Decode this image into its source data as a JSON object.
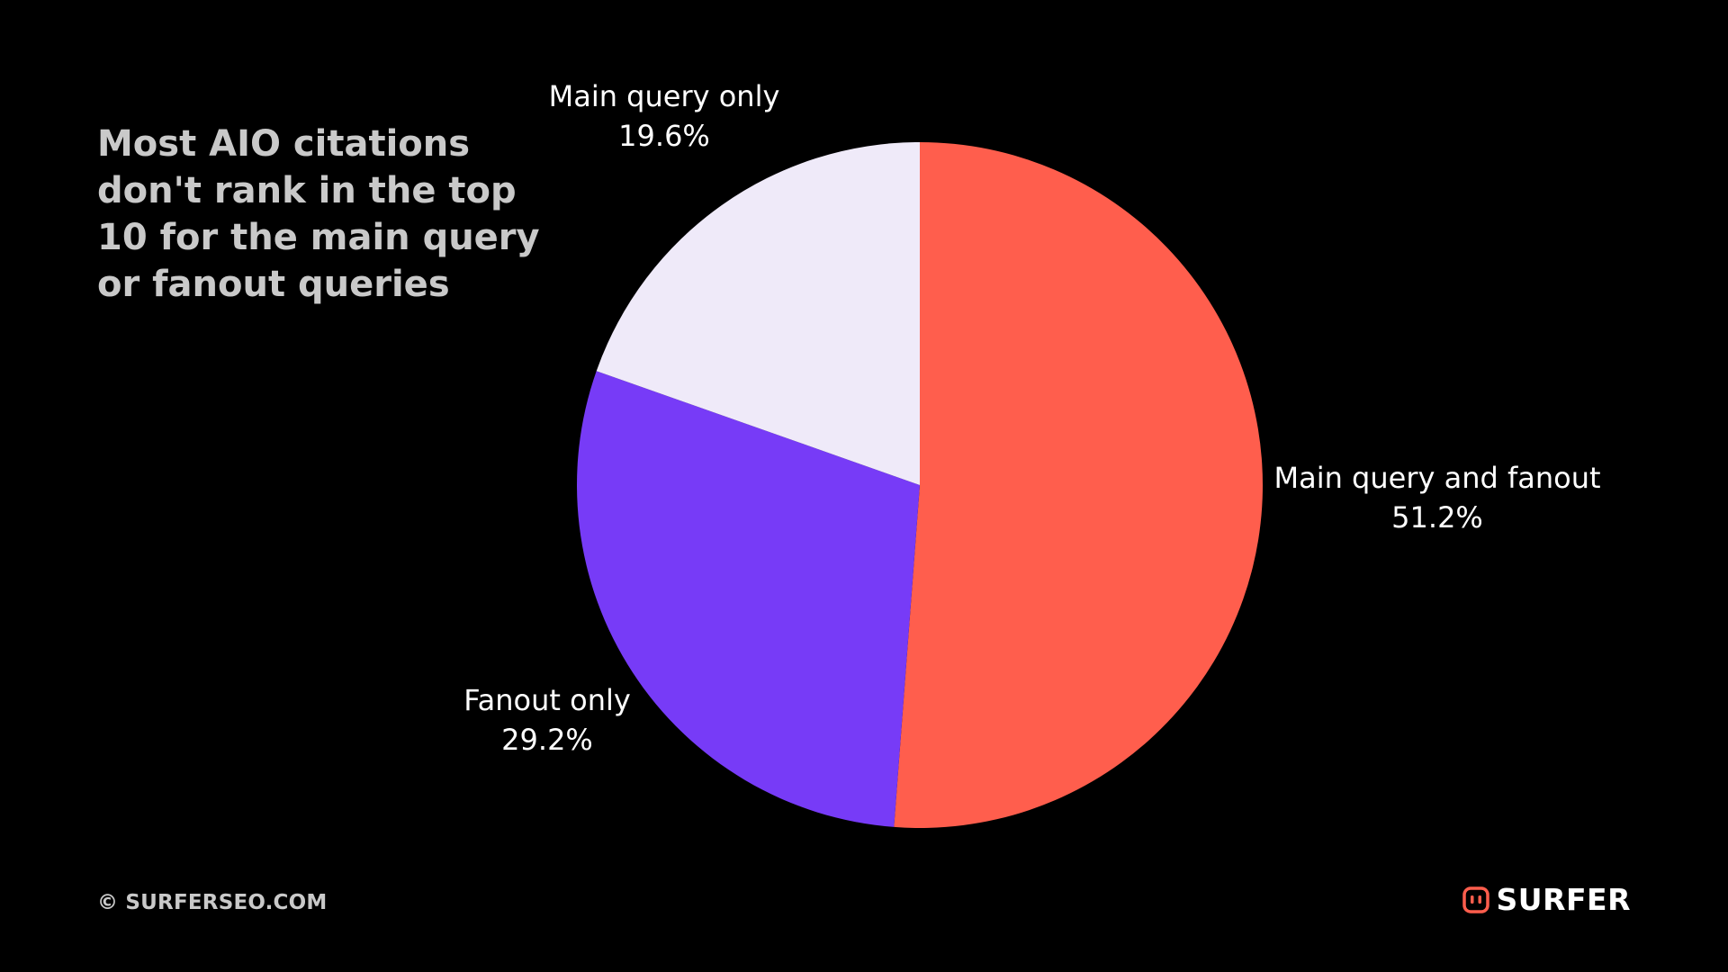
{
  "chart_data": {
    "type": "pie",
    "title": "Most AIO citations don't rank in the top 10 for the main query or fanout queries",
    "slices": [
      {
        "label": "Main query and fanout",
        "value": 51.2,
        "value_label": "51.2%",
        "color": "#ff5e4d"
      },
      {
        "label": "Fanout only",
        "value": 29.2,
        "value_label": "29.2%",
        "color": "#773bf7"
      },
      {
        "label": "Main query only",
        "value": 19.6,
        "value_label": "19.6%",
        "color": "#efeaf9"
      }
    ],
    "start_angle": "12 o'clock",
    "direction": "clockwise"
  },
  "footer": {
    "copyright": "© SURFERSEO.COM"
  },
  "brand": {
    "name": "SURFER",
    "logo_icon": "surfer-logo-icon",
    "logo_color": "#ff5e4d"
  },
  "colors": {
    "background": "#000000",
    "title_text": "#c9c9c9",
    "label_text": "#ffffff"
  }
}
